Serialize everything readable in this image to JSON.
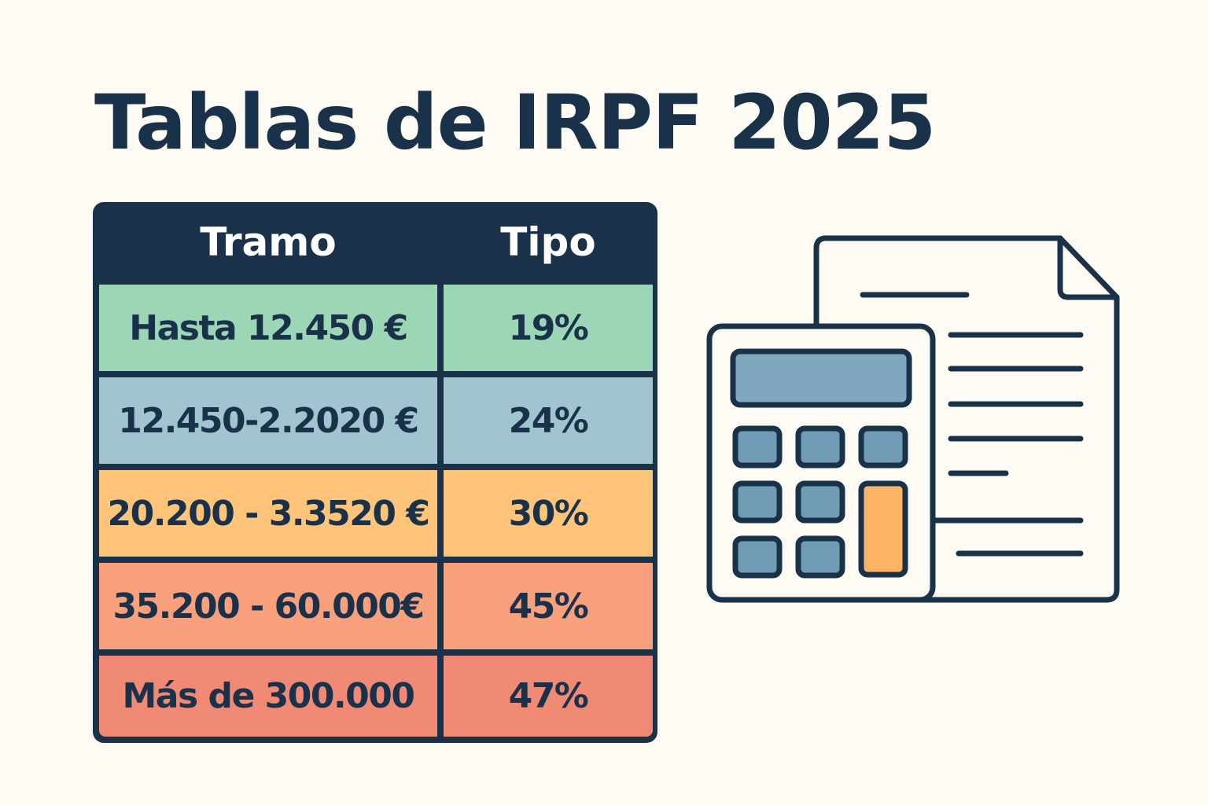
{
  "title": "Tablas de IRPF 2025",
  "table": {
    "headers": [
      "Tramo",
      "Tipo"
    ],
    "rows": [
      {
        "tramo": "Hasta 12.450 €",
        "tipo": "19%",
        "color": "#9bd6b6"
      },
      {
        "tramo": "12.450-2.2020 €",
        "tipo": "24%",
        "color": "#a2c4d1"
      },
      {
        "tramo": "20.200 - 3.3520 €",
        "tipo": "30%",
        "color": "#fdc47a"
      },
      {
        "tramo": "35.200 - 60.000€",
        "tipo": "45%",
        "color": "#f9a07c"
      },
      {
        "tramo": "Más de 300.000",
        "tipo": "47%",
        "color": "#f08a74"
      }
    ]
  },
  "illustration": {
    "icons": [
      "document-icon",
      "calculator-icon"
    ]
  },
  "colors": {
    "navy": "#1a3249",
    "background": "#fdfbf3",
    "screen": "#7fa8bf",
    "key": "#6f9bb5",
    "accent_key": "#fdb564"
  }
}
